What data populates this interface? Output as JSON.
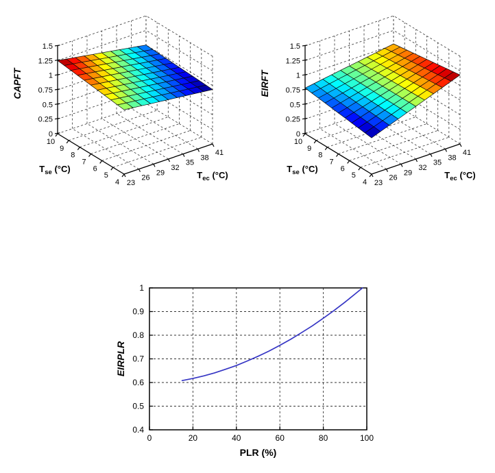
{
  "page": {
    "background": "#ffffff"
  },
  "colors": {
    "axis": "#000000",
    "grid": "#333333",
    "mesh_edge": "#0a0a0a",
    "curve_blue": "#3535c4",
    "colormap": "jet"
  },
  "chart_data": [
    {
      "type": "surface",
      "name": "CAPFT",
      "zlabel": "CAPFT",
      "xlabel": {
        "main": "T",
        "sub": "ec",
        "unit": " (°C)"
      },
      "ylabel": {
        "main": "T",
        "sub": "se",
        "unit": " (°C)"
      },
      "x": {
        "label": "Tec (°C)",
        "min": 23,
        "max": 41,
        "ticks": [
          "23",
          "26",
          "29",
          "32",
          "35",
          "38",
          "41"
        ]
      },
      "y": {
        "label": "Tse (°C)",
        "min": 4,
        "max": 10,
        "ticks": [
          "10",
          "9",
          "8",
          "7",
          "6",
          "5",
          "4"
        ]
      },
      "z": {
        "min": 0,
        "max": 1.5,
        "ticks": [
          "0",
          "0.25",
          "0.5",
          "0.75",
          "1",
          "1.25",
          "1.5"
        ]
      },
      "surface": {
        "grid_cells": 10,
        "corner_values": {
          "Tse4_Tec23": 1.1,
          "Tse10_Tec23": 1.25,
          "Tse4_Tec41": 0.93,
          "Tse10_Tec41": 1.0
        },
        "trend": "CAPFT decreases as Tec rises (red ~1.25 at Tec=23, Tse=10 to blue ~0.93 at Tec=41, Tse=4)",
        "colormap": "jet",
        "grid_style": "dashed"
      }
    },
    {
      "type": "surface",
      "name": "EIRFT",
      "zlabel": "EIRFT",
      "xlabel": {
        "main": "T",
        "sub": "ec",
        "unit": " (°C)"
      },
      "ylabel": {
        "main": "T",
        "sub": "se",
        "unit": " (°C)"
      },
      "x": {
        "label": "Tec (°C)",
        "min": 23,
        "max": 41,
        "ticks": [
          "23",
          "26",
          "29",
          "32",
          "35",
          "38",
          "41"
        ]
      },
      "y": {
        "label": "Tse (°C)",
        "min": 4,
        "max": 10,
        "ticks": [
          "10",
          "9",
          "8",
          "7",
          "6",
          "5",
          "4"
        ]
      },
      "z": {
        "min": 0,
        "max": 1.5,
        "ticks": [
          "0",
          "0.25",
          "0.5",
          "0.75",
          "1",
          "1.25",
          "1.5"
        ]
      },
      "surface": {
        "grid_cells": 10,
        "corner_values": {
          "Tse4_Tec23": 0.62,
          "Tse10_Tec23": 0.78,
          "Tse4_Tec41": 1.18,
          "Tse10_Tec41": 1.02
        },
        "trend": "EIRFT increases as Tec rises (dark blue ~0.62 at Tec=23 to dark red ~1.18 at Tec=41)",
        "colormap": "jet",
        "grid_style": "dashed"
      }
    },
    {
      "type": "line",
      "name": "EIRPLR",
      "xlabel": "PLR (%)",
      "ylabel": "EIRPLR",
      "x": {
        "min": 0,
        "max": 100,
        "ticks": [
          "0",
          "20",
          "40",
          "60",
          "80",
          "100"
        ]
      },
      "y": {
        "min": 0.4,
        "max": 1.0,
        "ticks": [
          "0.4",
          "0.5",
          "0.6",
          "0.7",
          "0.8",
          "0.9",
          "1"
        ]
      },
      "grid": "dashed",
      "series": [
        {
          "name": "EIRPLR curve",
          "color": "#3535c4",
          "x": [
            15,
            20,
            25,
            30,
            35,
            40,
            45,
            50,
            55,
            60,
            65,
            70,
            75,
            80,
            85,
            90,
            95,
            98
          ],
          "y": [
            0.608,
            0.617,
            0.628,
            0.641,
            0.656,
            0.672,
            0.691,
            0.711,
            0.733,
            0.757,
            0.783,
            0.811,
            0.84,
            0.872,
            0.905,
            0.94,
            0.977,
            1.0
          ]
        }
      ]
    }
  ]
}
